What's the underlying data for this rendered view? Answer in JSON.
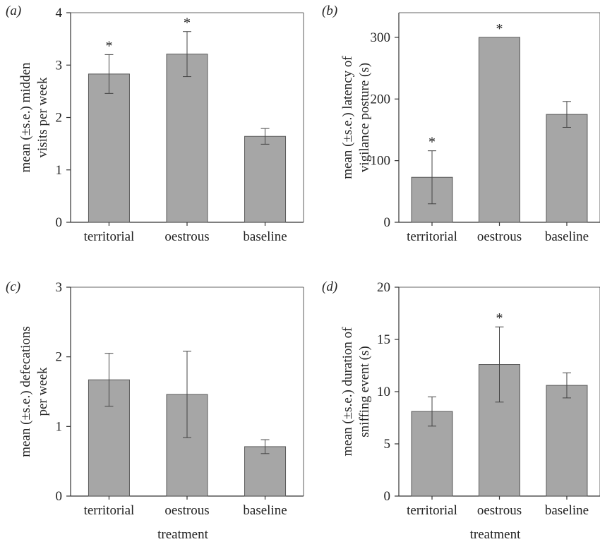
{
  "colors": {
    "bar": "#a6a6a6",
    "bar_edge": "#595959",
    "axis": "#333333",
    "error": "#444444"
  },
  "chart_data": [
    {
      "type": "bar",
      "panel_label": "(a)",
      "categories": [
        "territorial",
        "oestrous",
        "baseline"
      ],
      "values": [
        2.83,
        3.21,
        1.64
      ],
      "errors": [
        0.37,
        0.43,
        0.15
      ],
      "significant": [
        "*",
        "*",
        ""
      ],
      "xlabel": "",
      "ylabel": [
        "mean (±s.e.) midden",
        "visits per week"
      ],
      "ylim": [
        0,
        4
      ],
      "yticks": [
        0,
        1,
        2,
        3,
        4
      ],
      "grid": false
    },
    {
      "type": "bar",
      "panel_label": "(b)",
      "categories": [
        "territorial",
        "oestrous",
        "baseline"
      ],
      "values": [
        73,
        300,
        175
      ],
      "errors": [
        43,
        0,
        21
      ],
      "significant": [
        "*",
        "*",
        ""
      ],
      "xlabel": "",
      "ylabel": [
        "mean (±s.e.) latency of",
        "vigilance posture (s)"
      ],
      "ylim": [
        0,
        340
      ],
      "yticks": [
        0,
        100,
        200,
        300
      ],
      "grid": false
    },
    {
      "type": "bar",
      "panel_label": "(c)",
      "categories": [
        "territorial",
        "oestrous",
        "baseline"
      ],
      "values": [
        1.67,
        1.46,
        0.71
      ],
      "errors": [
        0.38,
        0.62,
        0.1
      ],
      "significant": [
        "",
        "",
        ""
      ],
      "xlabel": "treatment",
      "ylabel": [
        "mean (±s.e.) defecations",
        "per week"
      ],
      "ylim": [
        0,
        3
      ],
      "yticks": [
        0,
        1,
        2,
        3
      ],
      "grid": false
    },
    {
      "type": "bar",
      "panel_label": "(d)",
      "categories": [
        "territorial",
        "oestrous",
        "baseline"
      ],
      "values": [
        8.1,
        12.6,
        10.6
      ],
      "errors": [
        1.4,
        3.6,
        1.2
      ],
      "significant": [
        "",
        "*",
        ""
      ],
      "xlabel": "treatment",
      "ylabel": [
        "mean (±s.e.) duration of",
        "sniffing event (s)"
      ],
      "ylim": [
        0,
        20
      ],
      "yticks": [
        0,
        5,
        10,
        15,
        20
      ],
      "grid": false
    }
  ]
}
